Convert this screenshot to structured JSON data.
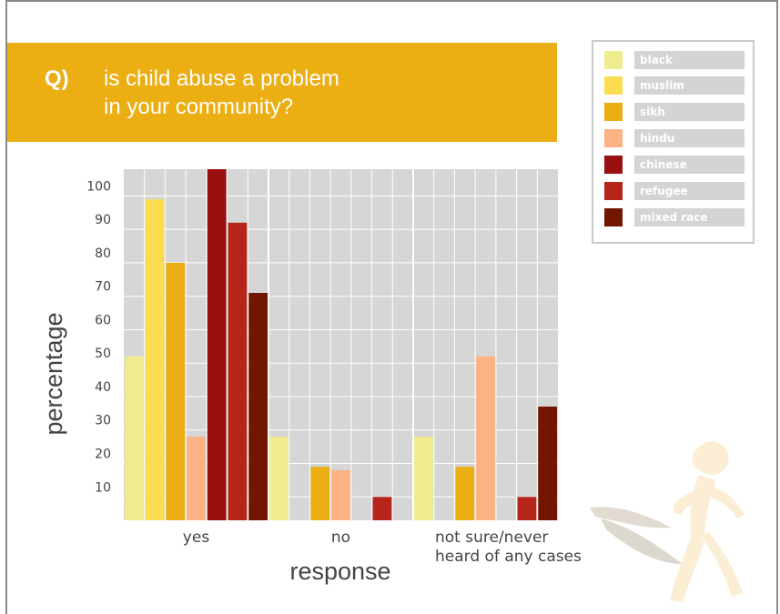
{
  "question": {
    "prefix": "Q)",
    "line1": "is child abuse a problem",
    "line2": "in your community?"
  },
  "legend": {
    "items": [
      {
        "label": "black",
        "color": "#eeec8c"
      },
      {
        "label": "muslim",
        "color": "#fcdc50"
      },
      {
        "label": "sikh",
        "color": "#ebae13"
      },
      {
        "label": "hindu",
        "color": "#fcb283"
      },
      {
        "label": "chinese",
        "color": "#9a0f10"
      },
      {
        "label": "refugee",
        "color": "#b5251a"
      },
      {
        "label": "mixed race",
        "color": "#721600"
      }
    ]
  },
  "chart_data": {
    "type": "bar",
    "xlabel": "response",
    "ylabel": "percentage",
    "ylim": [
      3,
      108
    ],
    "yticks": [
      10,
      20,
      30,
      40,
      50,
      60,
      70,
      80,
      90,
      100
    ],
    "grid": true,
    "legend_position": "top-right",
    "categories": [
      "yes",
      "no",
      "not sure/never\nheard of any cases"
    ],
    "category_lines": [
      [
        "yes"
      ],
      [
        "no"
      ],
      [
        "not sure/never",
        "heard of any cases"
      ]
    ],
    "series": [
      {
        "name": "black",
        "color": "#eeec8c",
        "values": [
          52,
          28,
          28
        ]
      },
      {
        "name": "muslim",
        "color": "#fcdc50",
        "values": [
          99,
          null,
          null
        ]
      },
      {
        "name": "sikh",
        "color": "#ebae13",
        "values": [
          80,
          19,
          19
        ]
      },
      {
        "name": "hindu",
        "color": "#fcb283",
        "values": [
          28,
          18,
          52
        ]
      },
      {
        "name": "chinese",
        "color": "#9a0f10",
        "values": [
          108,
          null,
          null
        ]
      },
      {
        "name": "refugee",
        "color": "#b5251a",
        "values": [
          92,
          10,
          10
        ]
      },
      {
        "name": "mixed race",
        "color": "#721600",
        "values": [
          71,
          null,
          37
        ]
      }
    ]
  }
}
